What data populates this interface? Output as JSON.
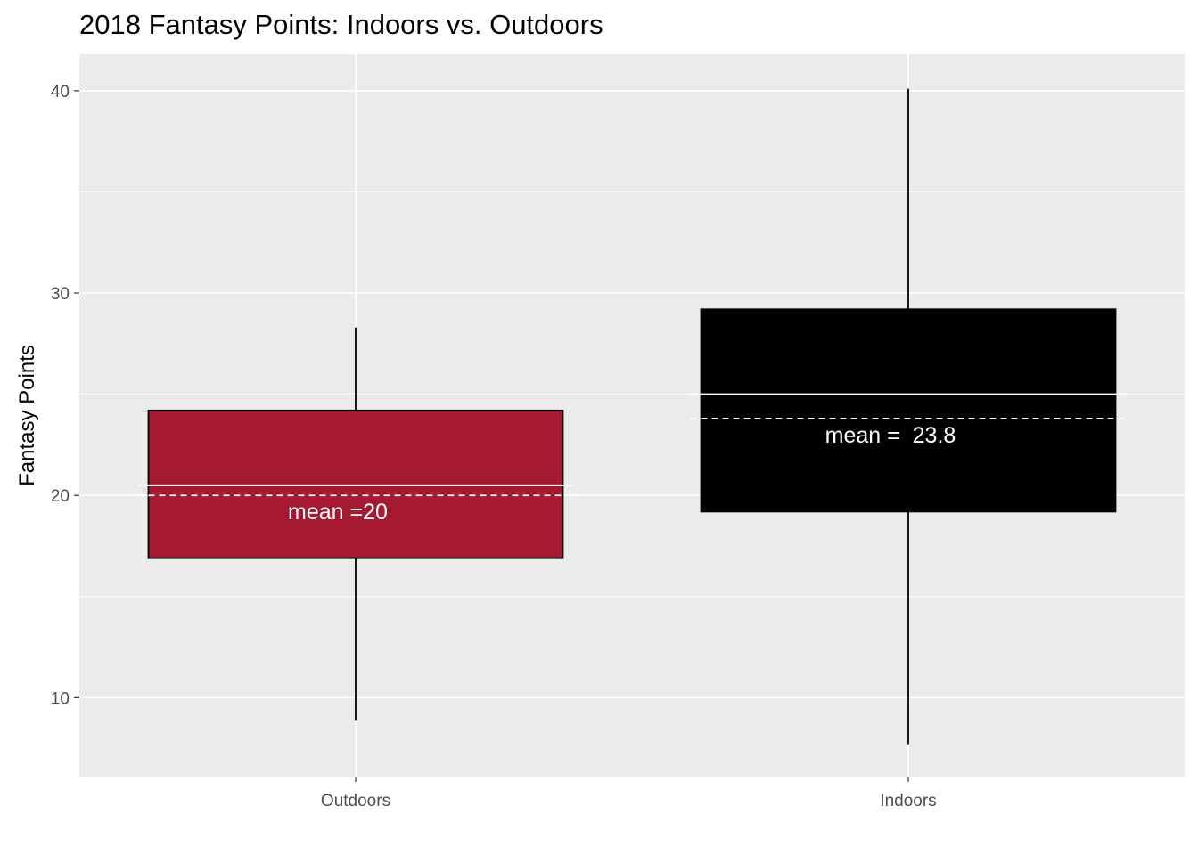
{
  "chart_data": {
    "type": "box",
    "title": "2018 Fantasy Points: Indoors vs. Outdoors",
    "xlabel": "",
    "ylabel": "Fantasy Points",
    "ylim": [
      6.1,
      41.8
    ],
    "yticks": [
      10,
      20,
      30,
      40
    ],
    "grid": true,
    "legend": "none",
    "categories": [
      "Outdoors",
      "Indoors"
    ],
    "boxes": [
      {
        "category": "Outdoors",
        "min": 8.9,
        "q1": 16.9,
        "median": 20.5,
        "q3": 24.2,
        "max": 28.3,
        "mean": 20.0,
        "mean_label": "mean =20",
        "color": "#a51931"
      },
      {
        "category": "Indoors",
        "min": 7.7,
        "q1": 19.2,
        "median": 25.0,
        "q3": 29.2,
        "max": 40.1,
        "mean": 23.8,
        "mean_label": "mean =  23.8",
        "color": "#000000"
      }
    ],
    "colors": {
      "panel": "#ebebeb",
      "grid": "#ffffff",
      "axis_text": "#4d4d4d"
    }
  }
}
